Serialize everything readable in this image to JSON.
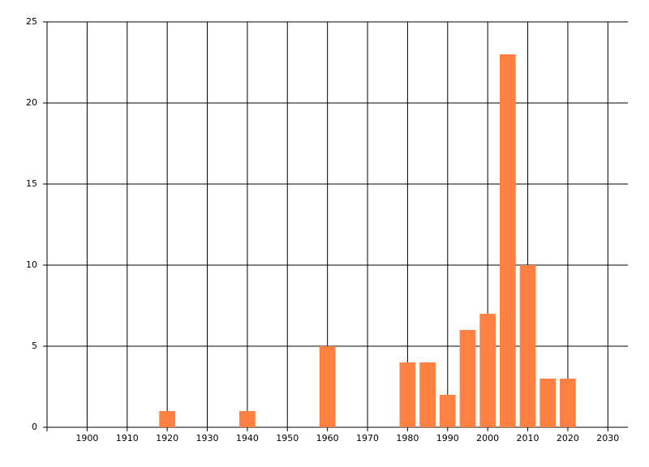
{
  "chart_data": {
    "type": "bar",
    "x": [
      1920,
      1940,
      1960,
      1980,
      1985,
      1990,
      1995,
      2000,
      2005,
      2010,
      2015,
      2020
    ],
    "values": [
      1,
      1,
      5,
      4,
      4,
      2,
      6,
      7,
      23,
      10,
      3,
      3
    ],
    "color": "#ff8040",
    "bar_width": 4,
    "xlim": [
      1890,
      2035
    ],
    "xticks": [
      1900,
      1910,
      1920,
      1930,
      1940,
      1950,
      1960,
      1970,
      1980,
      1990,
      2000,
      2010,
      2020,
      2030
    ],
    "ylim": [
      0,
      25
    ],
    "yticks": [
      0,
      5,
      10,
      15,
      20,
      25
    ],
    "grid": true
  }
}
